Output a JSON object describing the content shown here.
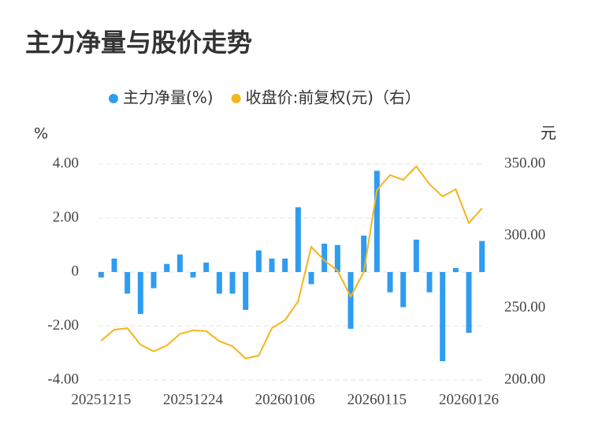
{
  "chart_data": {
    "type": "bar_line",
    "title": "主力净量与股价走势",
    "y_label": "%",
    "y2_label": "元",
    "categories": [
      "20251215",
      null,
      null,
      null,
      null,
      null,
      null,
      "20251224",
      null,
      null,
      null,
      null,
      null,
      null,
      "20260106",
      null,
      null,
      null,
      null,
      null,
      null,
      "20260115",
      null,
      null,
      null,
      null,
      null,
      null,
      "20260126",
      null
    ],
    "series": [
      {
        "name": "主力净量(%)",
        "color": "#2e9cf0",
        "type": "bar",
        "axis": "y",
        "values": [
          -0.2,
          0.5,
          -0.8,
          -1.55,
          -0.6,
          0.3,
          0.65,
          -0.2,
          0.35,
          -0.8,
          -0.8,
          -1.4,
          0.8,
          0.5,
          0.5,
          2.4,
          -0.45,
          1.05,
          1.0,
          -2.1,
          1.35,
          3.75,
          -0.75,
          -1.3,
          1.2,
          -0.75,
          -3.3,
          0.15,
          -2.25,
          1.15
        ]
      },
      {
        "name": "收盘价:前复权(元)（右）",
        "color": "#f3b61c",
        "type": "line",
        "axis": "y2",
        "values": [
          227.3,
          235,
          236,
          224.6,
          220,
          224,
          232,
          234.5,
          234,
          227,
          223.5,
          215,
          217,
          236,
          241.6,
          254.7,
          292.5,
          283,
          276,
          258,
          275,
          332,
          342.3,
          339,
          348.4,
          336,
          327.5,
          332.5,
          309,
          319.3
        ]
      }
    ],
    "ylim": [
      -4,
      4
    ],
    "yticks": [
      {
        "value": 4,
        "label": "4.00"
      },
      {
        "value": 2,
        "label": "2.00"
      },
      0,
      {
        "value": -2,
        "label": "-2.00"
      },
      {
        "value": -4,
        "label": "-4.00"
      }
    ],
    "y2lim": [
      200,
      350
    ],
    "y2ticks": [
      {
        "value": 350,
        "label": "350.00"
      },
      {
        "value": 300,
        "label": "300.00"
      },
      {
        "value": 250,
        "label": "250.00"
      },
      {
        "value": 200,
        "label": "200.00"
      }
    ],
    "grid": true
  }
}
